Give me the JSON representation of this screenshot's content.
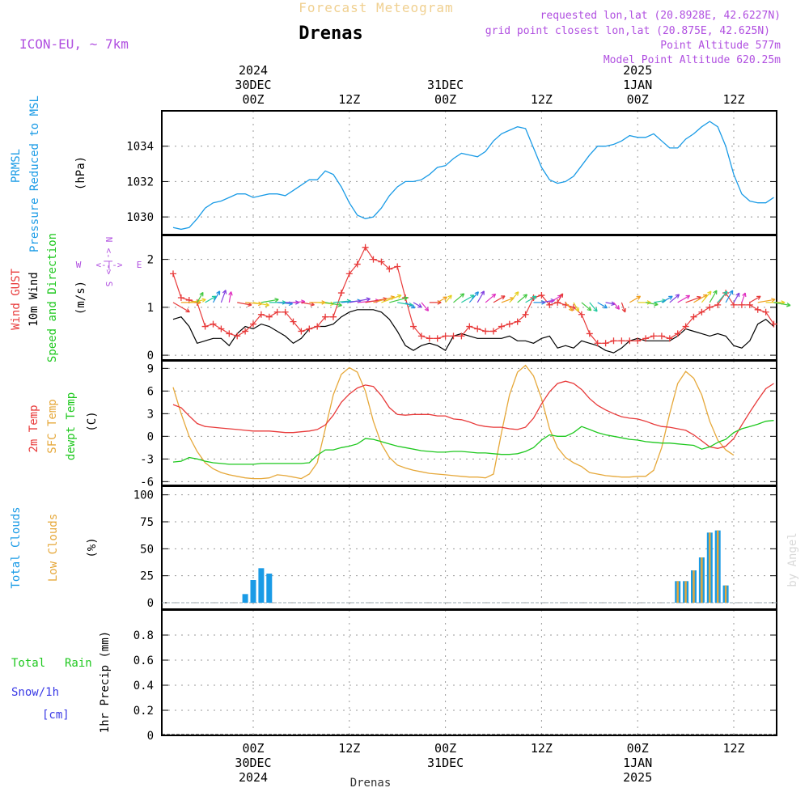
{
  "header": {
    "title": "Forecast Meteogram",
    "location": "Drenas",
    "model": "ICON-EU, ~ 7km",
    "requested": "requested lon,lat (20.8928E, 42.6227N)",
    "grid_point": "grid point closest lon,lat (20.875E, 42.625N)",
    "point_altitude": "Point Altitude 577m",
    "model_altitude": "Model Point Altitude 620.25m",
    "footer_location": "Drenas",
    "credit": "by Angel"
  },
  "colors": {
    "blue": "#1a9be6",
    "red": "#e83a3a",
    "green": "#1ec81e",
    "orange": "#e6a83a",
    "purple": "#b04fe0",
    "rainbow": [
      "#e63a3a",
      "#f0a020",
      "#e6d020",
      "#40c840",
      "#20c8a0",
      "#2090e0",
      "#8040e0",
      "#e030c0"
    ]
  },
  "chart_data": {
    "type": "line",
    "x_axis": {
      "unit": "hours from 2024-12-29 14Z (step 1h)",
      "range": [
        0,
        68
      ],
      "ticks": [
        {
          "x": 10,
          "label": "00Z",
          "day": "30DEC",
          "year": "2024"
        },
        {
          "x": 22,
          "label": "12Z",
          "day": "",
          "year": ""
        },
        {
          "x": 34,
          "label": "00Z",
          "day": "31DEC",
          "year": ""
        },
        {
          "x": 46,
          "label": "12Z",
          "day": "",
          "year": ""
        },
        {
          "x": 58,
          "label": "00Z",
          "day": "1JAN",
          "year": "2025"
        },
        {
          "x": 70,
          "label": "12Z",
          "day": "",
          "year": ""
        }
      ]
    },
    "pressure": {
      "labels": [
        "PRMSL",
        "Pressure Reduced to MSL",
        "(hPa)"
      ],
      "ylim": [
        1029,
        1036
      ],
      "ticks": [
        1030,
        1032,
        1034
      ],
      "values": [
        1029.4,
        1029.3,
        1029.4,
        1029.9,
        1030.5,
        1030.8,
        1030.9,
        1031.1,
        1031.3,
        1031.3,
        1031.1,
        1031.2,
        1031.3,
        1031.3,
        1031.2,
        1031.5,
        1031.8,
        1032.1,
        1032.1,
        1032.6,
        1032.4,
        1031.7,
        1030.8,
        1030.1,
        1029.9,
        1030.0,
        1030.5,
        1031.2,
        1031.7,
        1032.0,
        1032.0,
        1032.1,
        1032.4,
        1032.8,
        1032.9,
        1033.3,
        1033.6,
        1033.5,
        1033.4,
        1033.7,
        1034.3,
        1034.7,
        1034.9,
        1035.1,
        1035.0,
        1033.9,
        1032.8,
        1032.1,
        1031.9,
        1032.0,
        1032.3,
        1032.9,
        1033.5,
        1034.0,
        1034.0,
        1034.1,
        1034.3,
        1034.6,
        1034.5,
        1034.5,
        1034.7,
        1034.3,
        1033.9,
        1033.9,
        1034.4,
        1034.7,
        1035.1,
        1035.4,
        1035.1,
        1034.0,
        1032.4,
        1031.3,
        1030.9,
        1030.8,
        1030.8,
        1031.1,
        1031.4
      ]
    },
    "wind": {
      "labels": [
        "Wind GUST",
        "10m Wind",
        "Speed and Direction",
        "(m/s)"
      ],
      "ylim": [
        -0.1,
        2.5
      ],
      "ticks": [
        0,
        1,
        2
      ],
      "compass": {
        "n": "N",
        "s": "S",
        "w": "W",
        "e": "E",
        "arrow": "<-|->"
      },
      "gust": [
        1.7,
        1.2,
        1.15,
        1.1,
        0.6,
        0.65,
        0.55,
        0.45,
        0.4,
        0.5,
        0.65,
        0.85,
        0.8,
        0.9,
        0.9,
        0.7,
        0.5,
        0.55,
        0.6,
        0.8,
        0.8,
        1.3,
        1.7,
        1.9,
        2.25,
        2.0,
        1.95,
        1.8,
        1.85,
        1.2,
        0.6,
        0.4,
        0.35,
        0.35,
        0.4,
        0.4,
        0.4,
        0.6,
        0.55,
        0.5,
        0.5,
        0.6,
        0.65,
        0.7,
        0.85,
        1.2,
        1.25,
        1.05,
        1.1,
        1.05,
        1.0,
        0.85,
        0.45,
        0.25,
        0.25,
        0.3,
        0.3,
        0.3,
        0.3,
        0.35,
        0.4,
        0.4,
        0.35,
        0.45,
        0.6,
        0.8,
        0.9,
        1.0,
        1.05,
        1.3,
        1.05,
        1.05,
        1.05,
        0.95,
        0.9,
        0.65,
        1.05,
        0.55
      ],
      "speed": [
        0.75,
        0.8,
        0.6,
        0.25,
        0.3,
        0.35,
        0.35,
        0.2,
        0.45,
        0.6,
        0.55,
        0.65,
        0.6,
        0.5,
        0.4,
        0.25,
        0.35,
        0.55,
        0.6,
        0.6,
        0.65,
        0.8,
        0.9,
        0.95,
        0.95,
        0.95,
        0.9,
        0.75,
        0.5,
        0.2,
        0.1,
        0.2,
        0.25,
        0.2,
        0.1,
        0.4,
        0.45,
        0.4,
        0.35,
        0.35,
        0.35,
        0.35,
        0.4,
        0.3,
        0.3,
        0.25,
        0.35,
        0.4,
        0.15,
        0.2,
        0.15,
        0.3,
        0.25,
        0.2,
        0.1,
        0.05,
        0.15,
        0.3,
        0.35,
        0.3,
        0.3,
        0.3,
        0.3,
        0.4,
        0.55,
        0.5,
        0.45,
        0.4,
        0.45,
        0.4,
        0.2,
        0.15,
        0.3,
        0.65,
        0.75,
        0.6,
        0.4,
        0.35
      ],
      "direction_deg": [
        120,
        90,
        80,
        30,
        60,
        30,
        20,
        10,
        100,
        95,
        100,
        80,
        90,
        95,
        90,
        85,
        100,
        90,
        95,
        100,
        85,
        85,
        80,
        85,
        80,
        75,
        70,
        75,
        100,
        120,
        120,
        140,
        90,
        60,
        40,
        50,
        60,
        40,
        30,
        50,
        60,
        70,
        40,
        50,
        60,
        90,
        80,
        60,
        30,
        140,
        150,
        130,
        140,
        120,
        100,
        140,
        160,
        60,
        90,
        100,
        80,
        60,
        50,
        60,
        70,
        60,
        40,
        30,
        40,
        30,
        30,
        20,
        60,
        80,
        90,
        100,
        10
      ]
    },
    "temperature": {
      "labels": [
        "2m Temp",
        "SFC Temp",
        "dewpt Temp",
        "(C)"
      ],
      "ylim": [
        -6.5,
        10
      ],
      "ticks": [
        -6,
        -3,
        0,
        3,
        6,
        9
      ],
      "t2m": [
        4.2,
        3.8,
        2.7,
        1.7,
        1.3,
        1.2,
        1.1,
        1.0,
        0.9,
        0.8,
        0.7,
        0.7,
        0.7,
        0.6,
        0.5,
        0.5,
        0.6,
        0.7,
        0.9,
        1.5,
        2.8,
        4.5,
        5.6,
        6.4,
        6.8,
        6.6,
        5.4,
        3.8,
        2.9,
        2.8,
        2.9,
        2.9,
        2.9,
        2.7,
        2.7,
        2.3,
        2.2,
        1.9,
        1.5,
        1.3,
        1.2,
        1.2,
        1.0,
        0.9,
        1.2,
        2.4,
        4.3,
        5.9,
        7.0,
        7.3,
        7.0,
        6.2,
        5.0,
        4.1,
        3.5,
        3.0,
        2.6,
        2.4,
        2.3,
        2.0,
        1.6,
        1.3,
        1.2,
        1.0,
        0.8,
        0.2,
        -0.6,
        -1.4,
        -1.6,
        -1.3,
        -0.3,
        1.5,
        3.2,
        4.8,
        6.3,
        7.0,
        6.6,
        5.5,
        4.0,
        3.1,
        2.8
      ],
      "tsfc": [
        6.5,
        3.0,
        0.0,
        -2.0,
        -3.5,
        -4.3,
        -4.8,
        -5.1,
        -5.3,
        -5.5,
        -5.6,
        -5.6,
        -5.5,
        -5.1,
        -5.2,
        -5.4,
        -5.6,
        -5.0,
        -3.5,
        1.0,
        5.5,
        8.2,
        9.1,
        8.5,
        6.0,
        2.0,
        -1.0,
        -2.8,
        -3.8,
        -4.2,
        -4.5,
        -4.7,
        -4.9,
        -5.0,
        -5.1,
        -5.2,
        -5.3,
        -5.4,
        -5.4,
        -5.5,
        -5.0,
        0.5,
        5.5,
        8.5,
        9.4,
        8.0,
        5.0,
        1.0,
        -1.5,
        -2.8,
        -3.5,
        -4.0,
        -4.8,
        -5.0,
        -5.2,
        -5.3,
        -5.4,
        -5.4,
        -5.3,
        -5.3,
        -4.5,
        -1.5,
        3.0,
        7.0,
        8.6,
        7.7,
        5.5,
        2.0,
        -0.5,
        -1.8,
        -2.5
      ]
    },
    "dewpoint": [
      -3.4,
      -3.3,
      -2.8,
      -3.0,
      -3.3,
      -3.5,
      -3.6,
      -3.7,
      -3.7,
      -3.7,
      -3.7,
      -3.6,
      -3.6,
      -3.6,
      -3.6,
      -3.6,
      -3.6,
      -3.5,
      -2.5,
      -1.8,
      -1.8,
      -1.5,
      -1.3,
      -1.0,
      -0.3,
      -0.4,
      -0.7,
      -1.0,
      -1.3,
      -1.5,
      -1.7,
      -1.9,
      -2.0,
      -2.1,
      -2.1,
      -2.0,
      -2.0,
      -2.1,
      -2.2,
      -2.2,
      -2.3,
      -2.4,
      -2.4,
      -2.3,
      -2.0,
      -1.5,
      -0.5,
      0.2,
      0.0,
      0.0,
      0.5,
      1.3,
      0.9,
      0.5,
      0.2,
      0.0,
      -0.2,
      -0.4,
      -0.5,
      -0.7,
      -0.8,
      -0.9,
      -0.9,
      -1.0,
      -1.1,
      -1.2,
      -1.7,
      -1.4,
      -0.8,
      -0.4,
      0.5,
      1.0,
      1.3,
      1.6,
      2.0,
      2.1,
      1.6,
      0.8,
      0.3
    ],
    "clouds": {
      "labels": [
        "Total Clouds",
        "Low Clouds",
        "(%)"
      ],
      "ylim": [
        -6,
        108
      ],
      "ticks": [
        0,
        25,
        50,
        75,
        100
      ],
      "total": [
        [
          9,
          8
        ],
        [
          10,
          21
        ],
        [
          11,
          32
        ],
        [
          12,
          27
        ],
        [
          63,
          20
        ],
        [
          64,
          20
        ],
        [
          65,
          30
        ],
        [
          66,
          42
        ],
        [
          67,
          65
        ],
        [
          68,
          67
        ],
        [
          69,
          16
        ]
      ],
      "low": [
        [
          63,
          20
        ],
        [
          64,
          20
        ],
        [
          65,
          30
        ],
        [
          66,
          42
        ],
        [
          67,
          65
        ],
        [
          68,
          67
        ],
        [
          69,
          16
        ]
      ]
    },
    "precip": {
      "labels": [
        "Total",
        "Rain",
        "Snow/1h",
        "[cm]",
        "1hr Precip (mm)"
      ],
      "ylim": [
        0,
        1.0
      ],
      "ticks": [
        0,
        0.2,
        0.4,
        0.6,
        0.8
      ],
      "tick_labels": [
        "0",
        "0.2",
        "0.4",
        "0.6",
        "0.8"
      ],
      "values": []
    }
  }
}
